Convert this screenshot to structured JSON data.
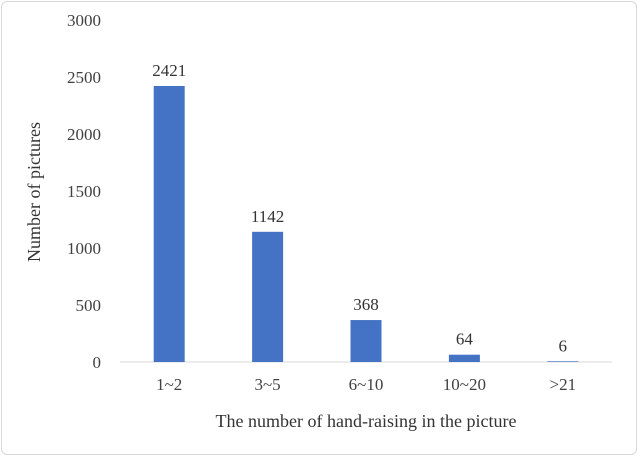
{
  "chart_data": {
    "type": "bar",
    "title": "",
    "xlabel": "The number of hand-raising in the picture",
    "ylabel": "Number of pictures",
    "categories": [
      "1~2",
      "3~5",
      "6~10",
      "10~20",
      ">21"
    ],
    "values": [
      2421,
      1142,
      368,
      64,
      6
    ],
    "value_labels": [
      "2421",
      "1142",
      "368",
      "64",
      "6"
    ],
    "ylim": [
      0,
      3000
    ],
    "yticks": [
      0,
      500,
      1000,
      1500,
      2000,
      2500,
      3000
    ],
    "bar_color": "#4472C4",
    "grid": false,
    "legend": "none"
  }
}
